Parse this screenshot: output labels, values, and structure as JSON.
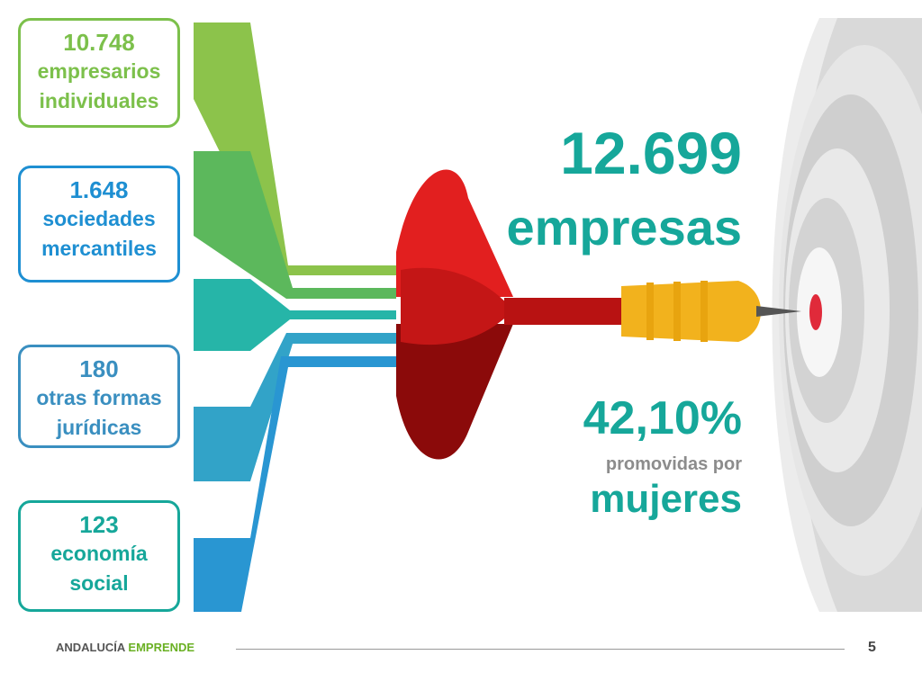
{
  "boxes": [
    {
      "number": "10.748",
      "line1": "empresarios",
      "line2": "individuales",
      "color": "#7cc04b"
    },
    {
      "number": "1.648",
      "line1": "sociedades",
      "line2": "mercantiles",
      "color": "#1e8fd2"
    },
    {
      "number": "180",
      "line1": "otras formas",
      "line2": "jurídicas",
      "color": "#3a8fc0"
    },
    {
      "number": "123",
      "line1": "economía",
      "line2": "social",
      "color": "#16a79a"
    }
  ],
  "total": {
    "number": "12.699",
    "label": "empresas"
  },
  "women": {
    "percent": "42,10%",
    "sub": "promovidas por",
    "label": "mujeres"
  },
  "footer": {
    "brand": "ANDALUCÍA",
    "brand_accent": "EMPRENDE",
    "page": "5"
  },
  "colors": {
    "teal": "#16a79a",
    "grey": "#8c8c8c",
    "dart_red": "#d81515",
    "dart_yellow": "#f2b21d"
  }
}
